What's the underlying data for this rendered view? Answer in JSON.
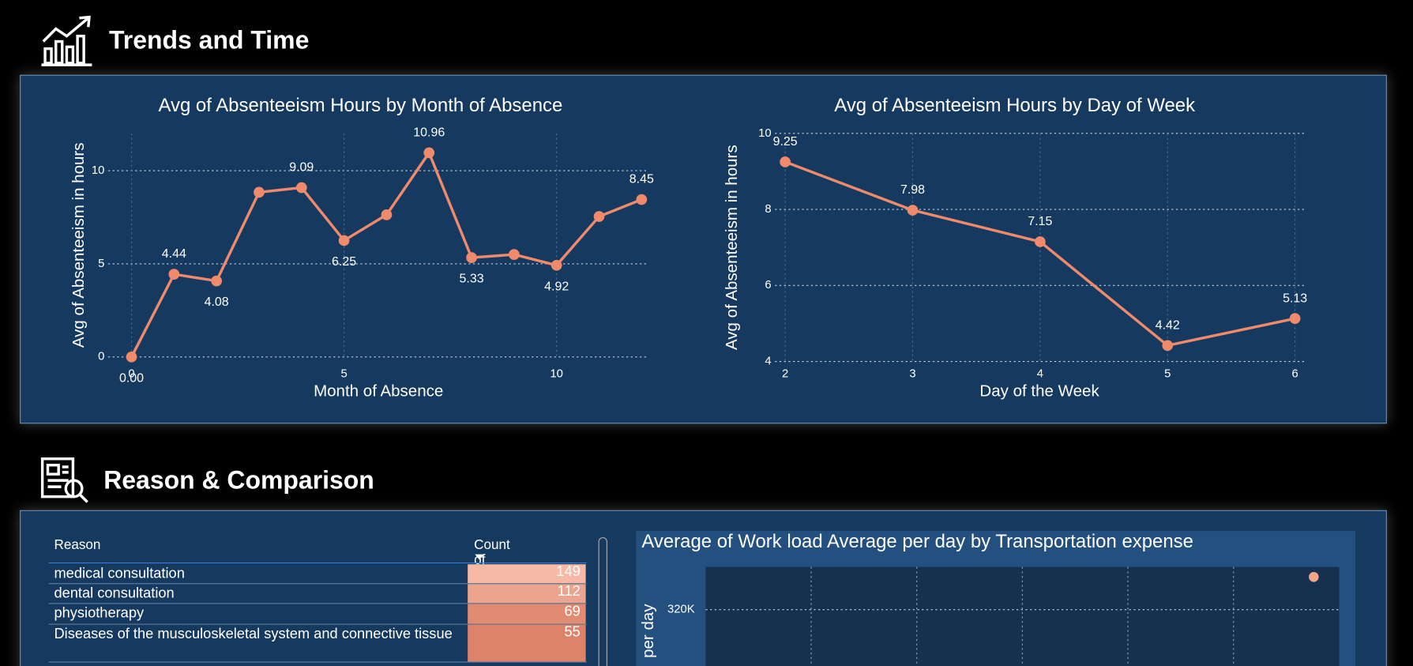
{
  "sections": [
    {
      "title": "Trends and Time"
    },
    {
      "title": "Reason & Comparison"
    }
  ],
  "chart_data": [
    {
      "type": "line",
      "title": "Avg of Absenteeism Hours by Month of Absence",
      "x_label": "Month of Absence",
      "y_label": "Avg of Absenteeism in hours",
      "x": [
        0,
        1,
        2,
        3,
        4,
        5,
        6,
        7,
        8,
        9,
        10,
        11,
        12
      ],
      "series": [
        {
          "name": "Avg of Absenteeism Hours",
          "color": "#f08a6c",
          "values": [
            0,
            4.44,
            4.08,
            8.84,
            9.09,
            6.25,
            7.63,
            10.96,
            5.33,
            5.5,
            4.92,
            7.54,
            8.45
          ],
          "value_labels": [
            "0.00",
            "4.44",
            "4.08",
            null,
            "9.09",
            "6.25",
            null,
            "10.96",
            "5.33",
            null,
            "4.92",
            null,
            "8.45"
          ]
        }
      ],
      "xlim": [
        -0.55,
        12.17
      ],
      "xticks": [
        0,
        5,
        10
      ],
      "ylim": [
        0,
        12
      ],
      "yticks": [
        0,
        5,
        10
      ],
      "grid": true
    },
    {
      "type": "line",
      "title": "Avg of Absenteeism Hours by Day of Week",
      "x_label": "Day of the Week",
      "y_label": "Avg of Absenteeism in hours",
      "x": [
        2,
        3,
        4,
        5,
        6
      ],
      "series": [
        {
          "name": "Avg of Absenteeism Hours",
          "color": "#f08a6c",
          "values": [
            9.25,
            7.98,
            7.15,
            4.42,
            5.13
          ]
        }
      ],
      "xlim": [
        1.92,
        6.07
      ],
      "xticks": [
        2,
        3,
        4,
        5,
        6
      ],
      "ylim": [
        4,
        10
      ],
      "yticks": [
        4,
        6,
        8,
        10
      ],
      "grid": true
    },
    {
      "type": "scatter",
      "title": "Average of Work load Average per day by Transportation expense",
      "y_label": "per day",
      "x": [
        388
      ],
      "series": [
        {
          "name": "Work load Average per day",
          "color": "#f4a58a",
          "values": [
            329000
          ]
        }
      ],
      "xlim": [
        100,
        400
      ],
      "xticks": [
        150,
        200,
        250,
        300,
        350
      ],
      "ylim": [
        300000,
        331750
      ],
      "yticks": [
        {
          "value": 320000,
          "label": "320K"
        }
      ],
      "grid": true
    }
  ],
  "table": {
    "columns": [
      "Reason",
      "Count of Reason"
    ],
    "rows": [
      [
        "medical consultation",
        149
      ],
      [
        "dental consultation",
        112
      ],
      [
        "physiotherapy",
        69
      ],
      [
        "Diseases of the musculoskeletal system and connective tissue",
        55
      ]
    ]
  }
}
